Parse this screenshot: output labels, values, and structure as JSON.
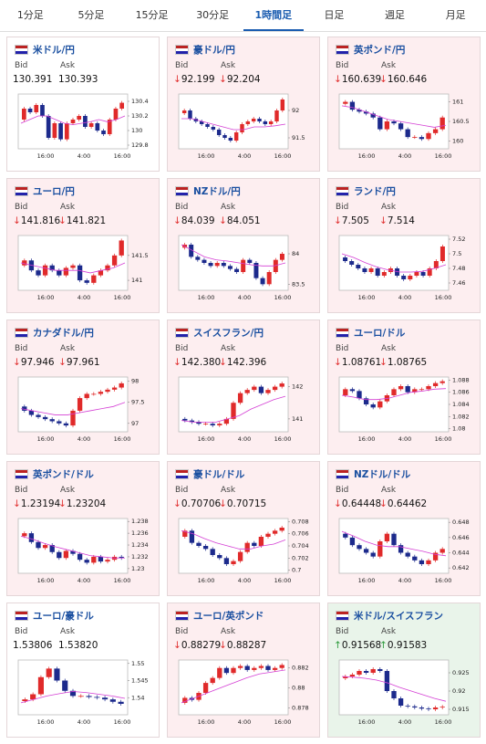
{
  "tabs": {
    "items": [
      "1分足",
      "5分足",
      "15分足",
      "30分足",
      "1時間足",
      "日足",
      "週足",
      "月足"
    ],
    "active": 4,
    "active_color": "#1a5cb0"
  },
  "labels": {
    "bid": "Bid",
    "ask": "Ask"
  },
  "chart_xticks": [
    "16:00",
    "4:00",
    "16:00"
  ],
  "candle_colors": {
    "up": "#e02a2a",
    "down": "#1c2a8c",
    "ma": "#d43fd4"
  },
  "cards": [
    {
      "name": "米ドル/円",
      "bg": "#ffffff",
      "arrow_color": "#e03030",
      "bid": {
        "arrow": "",
        "value": "130.391"
      },
      "ask": {
        "arrow": "",
        "value": "130.393"
      },
      "chart": {
        "ylim": [
          129.75,
          130.5
        ],
        "yticks": [
          130.4,
          130.2,
          130,
          129.8
        ],
        "values": [
          130.15,
          130.3,
          130.25,
          130.35,
          130.2,
          129.9,
          130.1,
          129.88,
          130.1,
          130.15,
          130.2,
          130.05,
          130.1,
          130.0,
          129.95,
          130.15,
          130.3,
          130.38
        ],
        "ma": [
          130.1,
          130.15,
          130.2,
          130.2,
          130.15,
          130.1,
          130.08,
          130.1,
          130.12,
          130.15,
          130.12,
          130.15,
          130.2
        ]
      }
    },
    {
      "name": "豪ドル/円",
      "bg": "#fdeef0",
      "arrow_color": "#e03030",
      "bid": {
        "arrow": "↓",
        "value": "92.199"
      },
      "ask": {
        "arrow": "↓",
        "value": "92.204"
      },
      "chart": {
        "ylim": [
          91.3,
          92.3
        ],
        "yticks": [
          92,
          91.5
        ],
        "values": [
          91.95,
          92.0,
          91.85,
          91.8,
          91.75,
          91.7,
          91.65,
          91.55,
          91.5,
          91.45,
          91.6,
          91.75,
          91.8,
          91.85,
          91.8,
          91.75,
          91.8,
          92.0,
          92.2
        ],
        "ma": [
          91.85,
          91.85,
          91.8,
          91.75,
          91.7,
          91.65,
          91.65,
          91.7,
          91.7,
          91.72,
          91.75
        ]
      }
    },
    {
      "name": "英ポンド/円",
      "bg": "#fdeef0",
      "arrow_color": "#e03030",
      "bid": {
        "arrow": "↓",
        "value": "160.639"
      },
      "ask": {
        "arrow": "↓",
        "value": "160.646"
      },
      "chart": {
        "ylim": [
          159.8,
          161.2
        ],
        "yticks": [
          161,
          160.5,
          160
        ],
        "values": [
          160.95,
          161.0,
          160.8,
          160.75,
          160.7,
          160.6,
          160.3,
          160.5,
          160.45,
          160.3,
          160.1,
          160.1,
          160.05,
          160.2,
          160.3,
          160.6
        ],
        "ma": [
          160.9,
          160.85,
          160.75,
          160.65,
          160.55,
          160.5,
          160.45,
          160.4,
          160.35,
          160.4
        ]
      }
    },
    {
      "name": "ユーロ/円",
      "bg": "#fdeef0",
      "arrow_color": "#e03030",
      "bid": {
        "arrow": "↓",
        "value": "141.816"
      },
      "ask": {
        "arrow": "↓",
        "value": "141.821"
      },
      "chart": {
        "ylim": [
          140.8,
          141.9
        ],
        "yticks": [
          141.5,
          141
        ],
        "values": [
          141.3,
          141.4,
          141.2,
          141.1,
          141.3,
          141.2,
          141.1,
          141.25,
          141.3,
          141.0,
          140.95,
          141.1,
          141.2,
          141.3,
          141.5,
          141.8
        ],
        "ma": [
          141.35,
          141.3,
          141.25,
          141.2,
          141.2,
          141.2,
          141.15,
          141.2,
          141.25,
          141.35
        ]
      }
    },
    {
      "name": "NZドル/円",
      "bg": "#fdeef0",
      "arrow_color": "#e03030",
      "bid": {
        "arrow": "↓",
        "value": "84.039"
      },
      "ask": {
        "arrow": "↓",
        "value": "84.051"
      },
      "chart": {
        "ylim": [
          83.4,
          84.3
        ],
        "yticks": [
          84,
          83.5
        ],
        "values": [
          84.1,
          84.15,
          83.95,
          83.9,
          83.85,
          83.8,
          83.85,
          83.8,
          83.75,
          83.7,
          83.9,
          83.85,
          83.6,
          83.5,
          83.7,
          83.9,
          84.0
        ],
        "ma": [
          84.15,
          84.05,
          83.95,
          83.9,
          83.88,
          83.85,
          83.82,
          83.8,
          83.8,
          83.85
        ]
      }
    },
    {
      "name": "ランド/円",
      "bg": "#fdeef0",
      "arrow_color": "#e03030",
      "bid": {
        "arrow": "↓",
        "value": "7.505"
      },
      "ask": {
        "arrow": "↓",
        "value": "7.514"
      },
      "chart": {
        "ylim": [
          7.45,
          7.525
        ],
        "yticks": [
          7.52,
          7.5,
          7.48,
          7.46
        ],
        "values": [
          7.495,
          7.49,
          7.485,
          7.48,
          7.475,
          7.48,
          7.47,
          7.475,
          7.48,
          7.47,
          7.465,
          7.47,
          7.475,
          7.47,
          7.48,
          7.49,
          7.51
        ],
        "ma": [
          7.5,
          7.495,
          7.488,
          7.482,
          7.478,
          7.475,
          7.475,
          7.476,
          7.48,
          7.485
        ]
      }
    },
    {
      "name": "カナダドル/円",
      "bg": "#fdeef0",
      "arrow_color": "#e03030",
      "bid": {
        "arrow": "↓",
        "value": "97.946"
      },
      "ask": {
        "arrow": "↓",
        "value": "97.961"
      },
      "chart": {
        "ylim": [
          96.8,
          98.1
        ],
        "yticks": [
          98,
          97.5,
          97
        ],
        "values": [
          97.4,
          97.3,
          97.2,
          97.15,
          97.1,
          97.05,
          97.0,
          96.95,
          97.3,
          97.6,
          97.7,
          97.7,
          97.75,
          97.8,
          97.85,
          97.95
        ],
        "ma": [
          97.35,
          97.3,
          97.25,
          97.2,
          97.2,
          97.25,
          97.3,
          97.35,
          97.4,
          97.5
        ]
      }
    },
    {
      "name": "スイスフラン/円",
      "bg": "#fdeef0",
      "arrow_color": "#e03030",
      "bid": {
        "arrow": "↓",
        "value": "142.380"
      },
      "ask": {
        "arrow": "↓",
        "value": "142.396"
      },
      "chart": {
        "ylim": [
          140.6,
          142.3
        ],
        "yticks": [
          142,
          141
        ],
        "values": [
          141.0,
          140.95,
          140.9,
          140.85,
          140.85,
          140.8,
          140.85,
          141.0,
          141.5,
          141.8,
          141.9,
          142.0,
          141.8,
          141.9,
          142.0,
          142.1
        ],
        "ma": [
          140.95,
          140.9,
          140.9,
          140.9,
          141.0,
          141.1,
          141.3,
          141.45,
          141.6,
          141.7
        ]
      }
    },
    {
      "name": "ユーロ/ドル",
      "bg": "#fdeef0",
      "arrow_color": "#e03030",
      "bid": {
        "arrow": "↓",
        "value": "1.08761"
      },
      "ask": {
        "arrow": "↓",
        "value": "1.08765"
      },
      "chart": {
        "ylim": [
          1.0795,
          1.0885
        ],
        "yticks": [
          1.088,
          1.086,
          1.084,
          1.082,
          1.08
        ],
        "values": [
          1.0855,
          1.0865,
          1.0862,
          1.085,
          1.084,
          1.0835,
          1.0845,
          1.0855,
          1.0865,
          1.087,
          1.086,
          1.0865,
          1.0865,
          1.087,
          1.0875,
          1.0878
        ],
        "ma": [
          1.0855,
          1.0852,
          1.0848,
          1.0848,
          1.085,
          1.0855,
          1.086,
          1.0862,
          1.0865,
          1.0866
        ]
      }
    },
    {
      "name": "英ポンド/ドル",
      "bg": "#fdeef0",
      "arrow_color": "#e03030",
      "bid": {
        "arrow": "↓",
        "value": "1.23194"
      },
      "ask": {
        "arrow": "↓",
        "value": "1.23204"
      },
      "chart": {
        "ylim": [
          1.2292,
          1.2385
        ],
        "yticks": [
          1.238,
          1.236,
          1.234,
          1.232,
          1.23
        ],
        "values": [
          1.2355,
          1.236,
          1.2345,
          1.2335,
          1.234,
          1.2328,
          1.2318,
          1.233,
          1.2325,
          1.2315,
          1.231,
          1.232,
          1.2312,
          1.2315,
          1.232,
          1.2318
        ],
        "ma": [
          1.2355,
          1.235,
          1.2343,
          1.2337,
          1.2332,
          1.2327,
          1.2322,
          1.232,
          1.2318,
          1.2318
        ]
      }
    },
    {
      "name": "豪ドル/ドル",
      "bg": "#fdeef0",
      "arrow_color": "#e03030",
      "bid": {
        "arrow": "↓",
        "value": "0.70706"
      },
      "ask": {
        "arrow": "↓",
        "value": "0.70715"
      },
      "chart": {
        "ylim": [
          0.6995,
          0.7085
        ],
        "yticks": [
          0.708,
          0.706,
          0.704,
          0.702,
          0.7
        ],
        "values": [
          0.7055,
          0.7065,
          0.7045,
          0.704,
          0.7035,
          0.7025,
          0.702,
          0.701,
          0.7015,
          0.703,
          0.7045,
          0.704,
          0.7055,
          0.706,
          0.7065,
          0.707
        ],
        "ma": [
          0.7065,
          0.706,
          0.7052,
          0.7045,
          0.704,
          0.7035,
          0.7035,
          0.704,
          0.7043,
          0.705
        ]
      }
    },
    {
      "name": "NZドル/ドル",
      "bg": "#fdeef0",
      "arrow_color": "#e03030",
      "bid": {
        "arrow": "↓",
        "value": "0.64448"
      },
      "ask": {
        "arrow": "↓",
        "value": "0.64462"
      },
      "chart": {
        "ylim": [
          0.6413,
          0.6485
        ],
        "yticks": [
          0.648,
          0.646,
          0.644,
          0.642
        ],
        "values": [
          0.6465,
          0.646,
          0.645,
          0.6445,
          0.644,
          0.6435,
          0.6455,
          0.6465,
          0.645,
          0.644,
          0.6435,
          0.643,
          0.6425,
          0.643,
          0.644,
          0.6445
        ],
        "ma": [
          0.6468,
          0.6462,
          0.6455,
          0.645,
          0.6448,
          0.6448,
          0.6445,
          0.6442,
          0.6438,
          0.6436
        ]
      }
    },
    {
      "name": "ユーロ/豪ドル",
      "bg": "#ffffff",
      "arrow_color": "#e03030",
      "bid": {
        "arrow": "",
        "value": "1.53806"
      },
      "ask": {
        "arrow": "",
        "value": "1.53820"
      },
      "chart": {
        "ylim": [
          1.535,
          1.551
        ],
        "yticks": [
          1.55,
          1.545,
          1.54
        ],
        "values": [
          1.539,
          1.5395,
          1.541,
          1.546,
          1.5485,
          1.545,
          1.542,
          1.5405,
          1.5405,
          1.5402,
          1.54,
          1.5395,
          1.5388,
          1.5382
        ],
        "ma": [
          1.5385,
          1.5395,
          1.5405,
          1.5412,
          1.5418,
          1.5415,
          1.541,
          1.5405,
          1.5398
        ]
      }
    },
    {
      "name": "ユーロ/英ポンド",
      "bg": "#fdeef0",
      "arrow_color": "#e03030",
      "bid": {
        "arrow": "↓",
        "value": "0.88279"
      },
      "ask": {
        "arrow": "↓",
        "value": "0.88287"
      },
      "chart": {
        "ylim": [
          0.8773,
          0.8828
        ],
        "yticks": [
          0.882,
          0.88,
          0.878
        ],
        "values": [
          0.8785,
          0.879,
          0.8788,
          0.8795,
          0.8805,
          0.881,
          0.882,
          0.8815,
          0.882,
          0.8822,
          0.8818,
          0.882,
          0.8822,
          0.8818,
          0.882,
          0.8823
        ],
        "ma": [
          0.8785,
          0.879,
          0.8795,
          0.88,
          0.8805,
          0.881,
          0.8814,
          0.8816,
          0.8818
        ]
      }
    },
    {
      "name": "米ドル/スイスフラン",
      "bg": "#e9f4ea",
      "arrow_color": "#2a9a3a",
      "bid": {
        "arrow": "↑",
        "value": "0.91568"
      },
      "ask": {
        "arrow": "↑",
        "value": "0.91583"
      },
      "chart": {
        "ylim": [
          0.9135,
          0.9285
        ],
        "yticks": [
          0.925,
          0.92,
          0.915
        ],
        "values": [
          0.9235,
          0.924,
          0.9245,
          0.9255,
          0.925,
          0.926,
          0.9255,
          0.92,
          0.918,
          0.916,
          0.9158,
          0.9155,
          0.9152,
          0.915,
          0.9155,
          0.9157
        ],
        "ma": [
          0.924,
          0.9238,
          0.9235,
          0.923,
          0.9222,
          0.921,
          0.92,
          0.919,
          0.918,
          0.9172
        ]
      }
    }
  ]
}
